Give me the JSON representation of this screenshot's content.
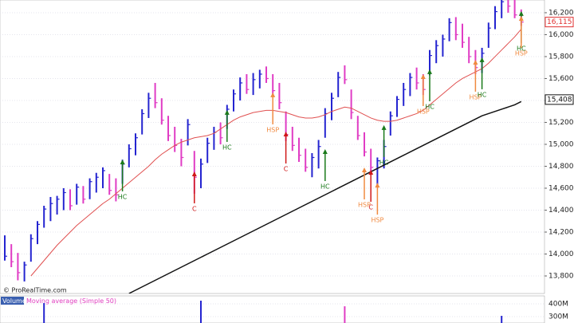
{
  "chart_data": {
    "type": "ohlc",
    "watermark": "© ProRealTime.com",
    "up_color": "#2424d0",
    "down_color": "#e03cc4",
    "ylim": [
      13640,
      16316
    ],
    "yticks": [
      {
        "value": 13800,
        "label": "13,800"
      },
      {
        "value": 14000,
        "label": "14,000"
      },
      {
        "value": 14200,
        "label": "14,200"
      },
      {
        "value": 14400,
        "label": "14,400"
      },
      {
        "value": 14600,
        "label": "14,600"
      },
      {
        "value": 14800,
        "label": "14,800"
      },
      {
        "value": 15000,
        "label": "15,000"
      },
      {
        "value": 15200,
        "label": "15,200"
      },
      {
        "value": 15400,
        "label": "15,400"
      },
      {
        "value": 15600,
        "label": "15,600"
      },
      {
        "value": 15800,
        "label": "15,800"
      },
      {
        "value": 16000,
        "label": "16,000"
      },
      {
        "value": 16200,
        "label": "16,200"
      }
    ],
    "grid": true,
    "high": [
      14170,
      14090,
      14010,
      13930,
      14180,
      14300,
      14440,
      14520,
      14530,
      14600,
      14590,
      14640,
      14620,
      14690,
      14740,
      14790,
      14730,
      14690,
      14860,
      15000,
      15100,
      15320,
      15470,
      15560,
      15420,
      15260,
      15160,
      15050,
      15230,
      14940,
      14870,
      15060,
      15160,
      15200,
      15360,
      15500,
      15610,
      15640,
      15650,
      15680,
      15710,
      15640,
      15560,
      15300,
      15160,
      15060,
      14960,
      14920,
      15040,
      15330,
      15470,
      15660,
      15720,
      15500,
      15260,
      15110,
      14960,
      14880,
      15040,
      15300,
      15440,
      15560,
      15650,
      15700,
      15640,
      15860,
      15950,
      16000,
      16150,
      16160,
      16100,
      15980,
      15860,
      15880,
      16110,
      16260,
      16340,
      16400,
      16330,
      16230
    ],
    "low": [
      13940,
      13880,
      13760,
      13750,
      13930,
      14090,
      14240,
      14300,
      14360,
      14400,
      14400,
      14450,
      14460,
      14500,
      14560,
      14600,
      14540,
      14480,
      14640,
      14790,
      14900,
      15090,
      15240,
      15330,
      15180,
      15030,
      14930,
      14800,
      14990,
      14550,
      14600,
      14830,
      14950,
      15000,
      15140,
      15300,
      15400,
      15460,
      15450,
      15510,
      15560,
      15450,
      15320,
      15030,
      14940,
      14840,
      14750,
      14700,
      14780,
      15060,
      15220,
      15430,
      15550,
      15230,
      15040,
      14890,
      14720,
      14620,
      14780,
      15080,
      15250,
      15350,
      15440,
      15500,
      15450,
      15630,
      15740,
      15800,
      15940,
      15950,
      15880,
      15740,
      15640,
      15650,
      15880,
      16050,
      16150,
      16200,
      16150,
      16080
    ],
    "close": [
      13980,
      13930,
      13830,
      13900,
      14140,
      14270,
      14410,
      14460,
      14500,
      14560,
      14440,
      14610,
      14500,
      14660,
      14700,
      14760,
      14580,
      14540,
      14820,
      14960,
      15060,
      15280,
      15420,
      15380,
      15220,
      15080,
      14990,
      14880,
      15180,
      14700,
      14820,
      15010,
      15110,
      15060,
      15320,
      15460,
      15560,
      15500,
      15590,
      15640,
      15600,
      15490,
      15380,
      15090,
      14990,
      14900,
      14790,
      14880,
      14980,
      15280,
      15420,
      15610,
      15590,
      15290,
      15080,
      14930,
      14790,
      14850,
      14980,
      15260,
      15410,
      15500,
      15610,
      15560,
      15500,
      15810,
      15900,
      15960,
      16110,
      16000,
      15930,
      15800,
      15700,
      15830,
      16060,
      16210,
      16300,
      16260,
      16180,
      16115
    ],
    "series": [
      {
        "color": "#e05050",
        "values": [
          null,
          null,
          null,
          null,
          13800,
          13870,
          13940,
          14010,
          14080,
          14140,
          14200,
          14260,
          14310,
          14360,
          14410,
          14460,
          14500,
          14550,
          14600,
          14650,
          14700,
          14750,
          14800,
          14860,
          14910,
          14950,
          14990,
          15020,
          15040,
          15060,
          15070,
          15080,
          15100,
          15140,
          15180,
          15220,
          15250,
          15270,
          15290,
          15300,
          15310,
          15310,
          15300,
          15290,
          15270,
          15250,
          15240,
          15240,
          15250,
          15270,
          15300,
          15320,
          15340,
          15330,
          15300,
          15270,
          15240,
          15220,
          15210,
          15210,
          15220,
          15240,
          15260,
          15280,
          15310,
          15360,
          15410,
          15460,
          15510,
          15560,
          15600,
          15630,
          15660,
          15690,
          15740,
          15800,
          15860,
          15920,
          15980,
          16050
        ]
      },
      {
        "color": "#111111",
        "values": [
          null,
          null,
          null,
          null,
          null,
          null,
          null,
          null,
          null,
          null,
          null,
          null,
          null,
          null,
          null,
          null,
          null,
          null,
          null,
          13640,
          13670,
          13700,
          13730,
          13760,
          13790,
          13820,
          13850,
          13880,
          13910,
          13940,
          13970,
          14000,
          14030,
          14060,
          14090,
          14120,
          14150,
          14180,
          14210,
          14240,
          14270,
          14300,
          14330,
          14360,
          14390,
          14420,
          14450,
          14480,
          14510,
          14540,
          14570,
          14600,
          14630,
          14660,
          14690,
          14720,
          14750,
          14780,
          14810,
          14840,
          14870,
          14900,
          14930,
          14960,
          14990,
          15020,
          15050,
          15080,
          15110,
          15140,
          15170,
          15200,
          15230,
          15260,
          15280,
          15300,
          15320,
          15340,
          15360,
          15390
        ]
      }
    ],
    "price_markers": [
      {
        "value": 16115,
        "label": "16,115",
        "color": "#e03030"
      },
      {
        "value": 15408,
        "label": "15,408",
        "color": "#111111"
      }
    ],
    "annotations": [
      {
        "text": "HC",
        "bar": 18,
        "value": 14862,
        "color": "#1a7a1a"
      },
      {
        "text": "C",
        "bar": 29,
        "value": 14753,
        "color": "#d01818"
      },
      {
        "text": "HC",
        "bar": 34,
        "value": 15313,
        "color": "#1a7a1a"
      },
      {
        "text": "HSP",
        "bar": 41,
        "value": 15473,
        "color": "#f08a40"
      },
      {
        "text": "C",
        "bar": 43,
        "value": 15116,
        "color": "#d01818"
      },
      {
        "text": "HC",
        "bar": 49,
        "value": 14956,
        "color": "#1a7a1a"
      },
      {
        "text": "HSP",
        "bar": 55,
        "value": 14789,
        "color": "#f08a40"
      },
      {
        "text": "C",
        "bar": 56,
        "value": 14767,
        "color": "#d01818"
      },
      {
        "text": "HSP",
        "bar": 57,
        "value": 14650,
        "color": "#f08a40"
      },
      {
        "text": "HC",
        "bar": 58,
        "value": 15175,
        "color": "#1a7a1a"
      },
      {
        "text": "HSP",
        "bar": 64,
        "value": 15640,
        "color": "#f08a40"
      },
      {
        "text": "HC",
        "bar": 65,
        "value": 15684,
        "color": "#1a7a1a"
      },
      {
        "text": "HSP",
        "bar": 72,
        "value": 15771,
        "color": "#f08a40"
      },
      {
        "text": "HC",
        "bar": 73,
        "value": 15793,
        "color": "#1a7a1a"
      },
      {
        "text": "HC",
        "bar": 79,
        "value": 16215,
        "color": "#1a7a1a"
      },
      {
        "text": "HSP",
        "bar": 79,
        "value": 16170,
        "color": "#f08a40"
      }
    ],
    "volume": {
      "label": "Volume",
      "ma_label": "Moving average (Simple 50)",
      "ylim": [
        250000000,
        462500000
      ],
      "yticks": [
        {
          "value": 400000000,
          "label": "400M"
        },
        {
          "value": 300000000,
          "label": "300M"
        }
      ],
      "values": [
        null,
        null,
        null,
        null,
        null,
        null,
        406000000,
        null,
        null,
        null,
        null,
        null,
        null,
        null,
        null,
        null,
        null,
        null,
        null,
        null,
        null,
        null,
        null,
        null,
        null,
        null,
        null,
        null,
        null,
        null,
        425000000,
        null,
        null,
        null,
        null,
        null,
        null,
        null,
        null,
        null,
        null,
        null,
        null,
        null,
        null,
        null,
        null,
        null,
        null,
        null,
        null,
        null,
        381000000,
        null,
        null,
        null,
        null,
        null,
        null,
        null,
        null,
        null,
        null,
        null,
        null,
        null,
        null,
        null,
        null,
        null,
        null,
        null,
        null,
        null,
        null,
        null,
        306000000,
        null,
        null,
        null
      ]
    }
  }
}
